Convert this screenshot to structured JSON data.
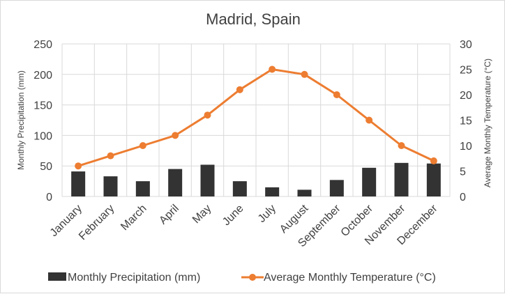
{
  "chart_data": {
    "type": "bar+line",
    "title": "Madrid, Spain",
    "categories": [
      "January",
      "February",
      "March",
      "April",
      "May",
      "June",
      "July",
      "August",
      "September",
      "October",
      "November",
      "December"
    ],
    "series": [
      {
        "name": "Monthly Precipitation  (mm)",
        "type": "bar",
        "axis": "left",
        "values": [
          41,
          33,
          25,
          45,
          52,
          25,
          15,
          11,
          27,
          47,
          55,
          54
        ]
      },
      {
        "name": "Average Monthly  Temperature (°C)",
        "type": "line",
        "axis": "right",
        "values": [
          6,
          8,
          10,
          12,
          16,
          21,
          25,
          24,
          20,
          15,
          10,
          7
        ]
      }
    ],
    "ylabel_left": "Monthly Precipitation  (mm)",
    "ylabel_right": "Average Monthly  Temperature (°C)",
    "ylim_left": [
      0,
      250
    ],
    "ylim_right": [
      0,
      30
    ],
    "yticks_left": [
      "0",
      "50",
      "100",
      "150",
      "200",
      "250"
    ],
    "yticks_right": [
      "0",
      "5",
      "10",
      "15",
      "20",
      "25",
      "30"
    ],
    "grid": true,
    "legend": "bottom",
    "colors": {
      "bar": "#333333",
      "line": "#ed7d31",
      "grid": "#d9d9d9",
      "text": "#404040"
    }
  }
}
